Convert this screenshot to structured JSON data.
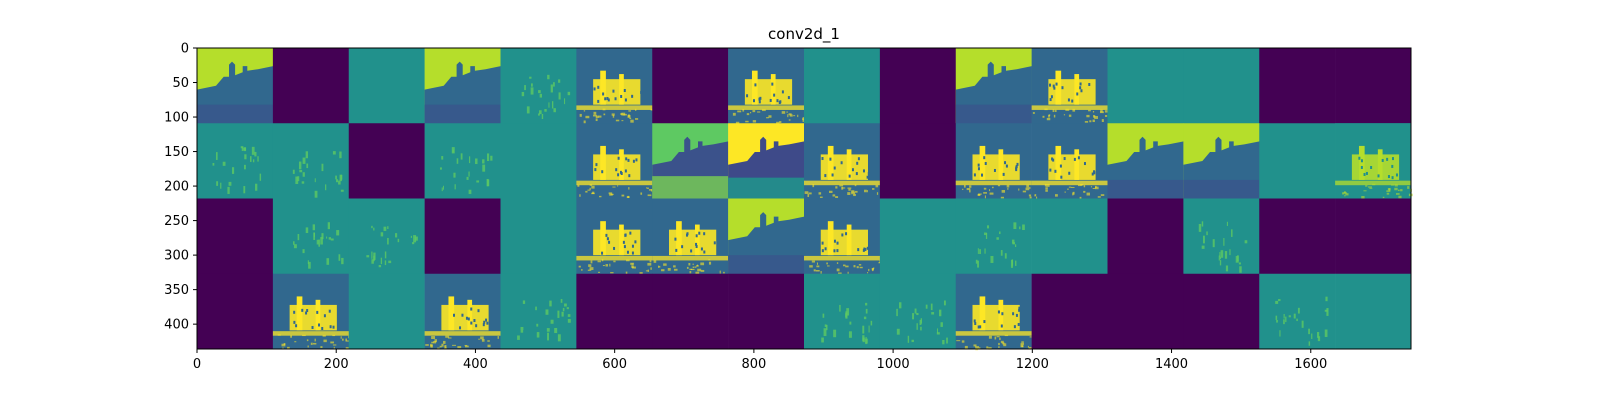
{
  "chart_data": {
    "type": "heatmap",
    "title": "conv2d_1",
    "xlabel": "",
    "ylabel": "",
    "xlim": [
      0,
      1744
    ],
    "ylim": [
      436,
      0
    ],
    "x_ticks": [
      0,
      200,
      400,
      600,
      800,
      1000,
      1200,
      1400,
      1600
    ],
    "y_ticks": [
      0,
      50,
      100,
      150,
      200,
      250,
      300,
      350,
      400
    ],
    "grid": false,
    "colormap": "viridis",
    "colors": {
      "dead": "#440154",
      "flat": "#21918c",
      "dark_mid": "#31688e",
      "bright": "#fde725",
      "lime": "#b5de2b",
      "green": "#5ec962"
    },
    "tile_size": 109,
    "grid_rows": 4,
    "grid_cols": 16,
    "tile_kinds": [
      [
        "sky",
        "dead",
        "flat",
        "sky",
        "flat-edges",
        "bright-building",
        "dead",
        "bright-building",
        "flat",
        "dead",
        "sky",
        "bright-building",
        "flat",
        "flat",
        "dead",
        "dead"
      ],
      [
        "flat-edges",
        "flat-edges",
        "dead",
        "flat-edges",
        "flat",
        "bright-building",
        "dark-silhouette",
        "bright-silhouette",
        "bright-building",
        "dead",
        "bright-building",
        "bright-building",
        "sky",
        "sky",
        "flat",
        "flat-building"
      ],
      [
        "dead",
        "flat-edges",
        "flat-edges",
        "dead",
        "flat",
        "bright-building",
        "bright-building",
        "sky",
        "bright-building",
        "flat",
        "flat-edges",
        "flat",
        "dead",
        "flat-edges",
        "dead",
        "dead"
      ],
      [
        "dead",
        "bright-building",
        "flat",
        "bright-building",
        "flat-edges",
        "dead",
        "dead",
        "dead",
        "flat-edges",
        "flat-edges",
        "bright-building",
        "dead",
        "dead",
        "dead",
        "flat-edges",
        "flat"
      ]
    ]
  }
}
